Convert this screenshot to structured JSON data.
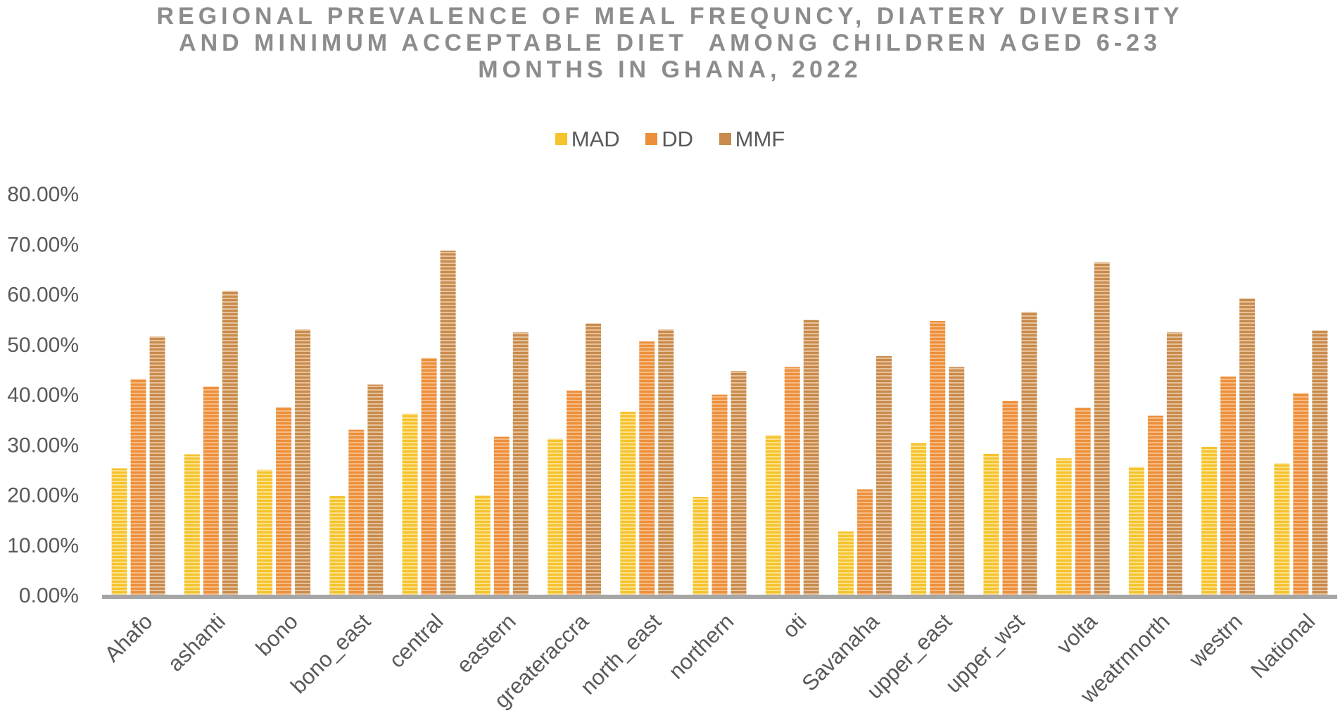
{
  "chart_data": {
    "type": "bar",
    "title_lines": [
      "REGIONAL PREVALENCE OF MEAL FREQUNCY, DIATERY DIVERSITY",
      "AND MINIMUM ACCEPTABLE DIET  AMONG CHILDREN AGED 6-23",
      "MONTHS IN GHANA, 2022"
    ],
    "categories": [
      "Ahafo",
      "ashanti",
      "bono",
      "bono_east",
      "central",
      "eastern",
      "greateraccra",
      "north_east",
      "northern",
      "oti",
      "Savanaha",
      "upper_east",
      "upper_wst",
      "volta",
      "weatrnnorth",
      "westrn",
      "National"
    ],
    "series": [
      {
        "name": "MAD",
        "color": "#f5c32c",
        "stripe": "#fbe08c",
        "values": [
          25.2,
          28.0,
          24.9,
          19.7,
          36.1,
          19.8,
          31.1,
          36.5,
          19.5,
          31.8,
          12.6,
          30.3,
          28.1,
          27.2,
          25.5,
          29.5,
          26.2
        ]
      },
      {
        "name": "DD",
        "color": "#ed8f3a",
        "stripe": "#f5bb85",
        "values": [
          43.0,
          41.5,
          37.4,
          32.9,
          47.2,
          31.5,
          40.7,
          50.5,
          39.9,
          45.4,
          21.0,
          54.6,
          38.6,
          37.3,
          35.7,
          43.5,
          40.2
        ]
      },
      {
        "name": "MMF",
        "color": "#c88b4c",
        "stripe": "#e6c19b",
        "values": [
          51.5,
          60.6,
          52.9,
          41.9,
          68.6,
          52.3,
          54.1,
          52.9,
          44.6,
          54.8,
          47.6,
          45.4,
          56.4,
          66.3,
          52.3,
          59.1,
          52.7
        ]
      }
    ],
    "y_tick_labels": [
      "0.00%",
      "10.00%",
      "20.00%",
      "30.00%",
      "40.00%",
      "50.00%",
      "60.00%",
      "70.00%",
      "80.00%"
    ],
    "ylim": [
      0,
      80
    ],
    "ylabel": "",
    "xlabel": "",
    "grid": false,
    "legend_position": "top",
    "axis_color": "#a6a6a6"
  }
}
